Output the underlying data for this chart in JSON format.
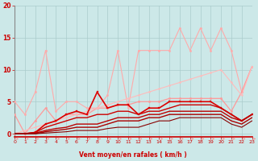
{
  "xlabel": "Vent moyen/en rafales ( km/h )",
  "xlim": [
    0,
    23
  ],
  "ylim": [
    -0.5,
    20
  ],
  "xticks": [
    0,
    1,
    2,
    3,
    4,
    5,
    6,
    7,
    8,
    9,
    10,
    11,
    12,
    13,
    14,
    15,
    16,
    17,
    18,
    19,
    20,
    21,
    22,
    23
  ],
  "yticks": [
    0,
    5,
    10,
    15,
    20
  ],
  "background_color": "#cce8e8",
  "grid_color": "#aacccc",
  "lines": [
    {
      "x": [
        0,
        1,
        2,
        3,
        4,
        5,
        6,
        7,
        8,
        9,
        10,
        11,
        12,
        13,
        14,
        15,
        16,
        17,
        18,
        19,
        20,
        21,
        22,
        23
      ],
      "y": [
        5,
        3,
        6.5,
        13,
        3.5,
        5,
        5,
        4,
        4,
        6,
        13,
        4,
        13,
        13,
        13,
        13,
        16.5,
        13,
        16.5,
        13,
        16.5,
        13,
        6.5,
        10.5
      ],
      "color": "#ffaaaa",
      "lw": 0.8,
      "marker": "o",
      "ms": 1.8
    },
    {
      "x": [
        0,
        1,
        2,
        3,
        4,
        5,
        6,
        7,
        8,
        9,
        10,
        11,
        12,
        13,
        14,
        15,
        16,
        17,
        18,
        19,
        20,
        21,
        22,
        23
      ],
      "y": [
        3,
        0,
        2,
        4,
        2,
        3,
        3,
        3,
        4,
        4,
        4.5,
        4.5,
        5,
        5,
        5,
        5.5,
        5.5,
        5.5,
        5.5,
        5.5,
        5.5,
        3.5,
        6.5,
        10.5
      ],
      "color": "#ff9999",
      "lw": 0.9,
      "marker": "o",
      "ms": 1.8
    },
    {
      "x": [
        0,
        1,
        2,
        3,
        4,
        5,
        6,
        7,
        8,
        9,
        10,
        11,
        12,
        13,
        14,
        15,
        16,
        17,
        18,
        19,
        20,
        21,
        22,
        23
      ],
      "y": [
        0,
        0.5,
        1,
        1.5,
        2,
        2.5,
        3,
        3.5,
        4,
        4.5,
        5,
        5.5,
        6,
        6.5,
        7,
        7.5,
        8,
        8.5,
        9,
        9.5,
        10,
        8,
        6,
        10.5
      ],
      "color": "#ffbbbb",
      "lw": 0.8,
      "marker": "o",
      "ms": 1.5
    },
    {
      "x": [
        0,
        1,
        2,
        3,
        4,
        5,
        6,
        7,
        8,
        9,
        10,
        11,
        12,
        13,
        14,
        15,
        16,
        17,
        18,
        19,
        20,
        21,
        22,
        23
      ],
      "y": [
        0,
        0,
        0.2,
        1.5,
        2,
        3,
        3.5,
        3,
        6.5,
        4,
        4.5,
        4.5,
        3,
        4,
        4,
        5,
        5,
        5,
        5,
        5,
        4,
        3,
        2,
        3
      ],
      "color": "#dd0000",
      "lw": 1.2,
      "marker": "s",
      "ms": 2.0
    },
    {
      "x": [
        0,
        1,
        2,
        3,
        4,
        5,
        6,
        7,
        8,
        9,
        10,
        11,
        12,
        13,
        14,
        15,
        16,
        17,
        18,
        19,
        20,
        21,
        22,
        23
      ],
      "y": [
        0,
        0,
        0.2,
        1,
        1.5,
        2,
        2.5,
        2.5,
        3,
        3,
        3.5,
        3.5,
        3,
        3.5,
        3.5,
        4,
        4.5,
        4.5,
        4.5,
        4.5,
        4,
        3,
        2,
        3
      ],
      "color": "#cc0000",
      "lw": 1.0,
      "marker": null,
      "ms": 0
    },
    {
      "x": [
        0,
        1,
        2,
        3,
        4,
        5,
        6,
        7,
        8,
        9,
        10,
        11,
        12,
        13,
        14,
        15,
        16,
        17,
        18,
        19,
        20,
        21,
        22,
        23
      ],
      "y": [
        0,
        0,
        0.1,
        0.5,
        0.8,
        1,
        1.5,
        1.5,
        1.5,
        2,
        2.5,
        2.5,
        2.5,
        3,
        3,
        3.5,
        3.5,
        3.5,
        3.5,
        3.5,
        3.5,
        2.5,
        2,
        3
      ],
      "color": "#bb0000",
      "lw": 1.0,
      "marker": null,
      "ms": 0
    },
    {
      "x": [
        0,
        1,
        2,
        3,
        4,
        5,
        6,
        7,
        8,
        9,
        10,
        11,
        12,
        13,
        14,
        15,
        16,
        17,
        18,
        19,
        20,
        21,
        22,
        23
      ],
      "y": [
        0,
        0,
        0,
        0.3,
        0.5,
        0.7,
        1,
        1,
        1,
        1.5,
        2,
        2,
        2,
        2.5,
        2.5,
        3,
        3,
        3,
        3,
        3,
        3,
        2,
        1.5,
        2.5
      ],
      "color": "#aa0000",
      "lw": 1.0,
      "marker": null,
      "ms": 0
    },
    {
      "x": [
        0,
        1,
        2,
        3,
        4,
        5,
        6,
        7,
        8,
        9,
        10,
        11,
        12,
        13,
        14,
        15,
        16,
        17,
        18,
        19,
        20,
        21,
        22,
        23
      ],
      "y": [
        0,
        0,
        0,
        0.1,
        0.2,
        0.3,
        0.5,
        0.5,
        0.5,
        0.8,
        1,
        1,
        1,
        1.5,
        2,
        2,
        2.5,
        2.5,
        2.5,
        2.5,
        2.5,
        1.5,
        1,
        2
      ],
      "color": "#880000",
      "lw": 0.8,
      "marker": null,
      "ms": 0
    }
  ],
  "arrows": {
    "color": "#ff8888",
    "y_data": -0.8
  }
}
